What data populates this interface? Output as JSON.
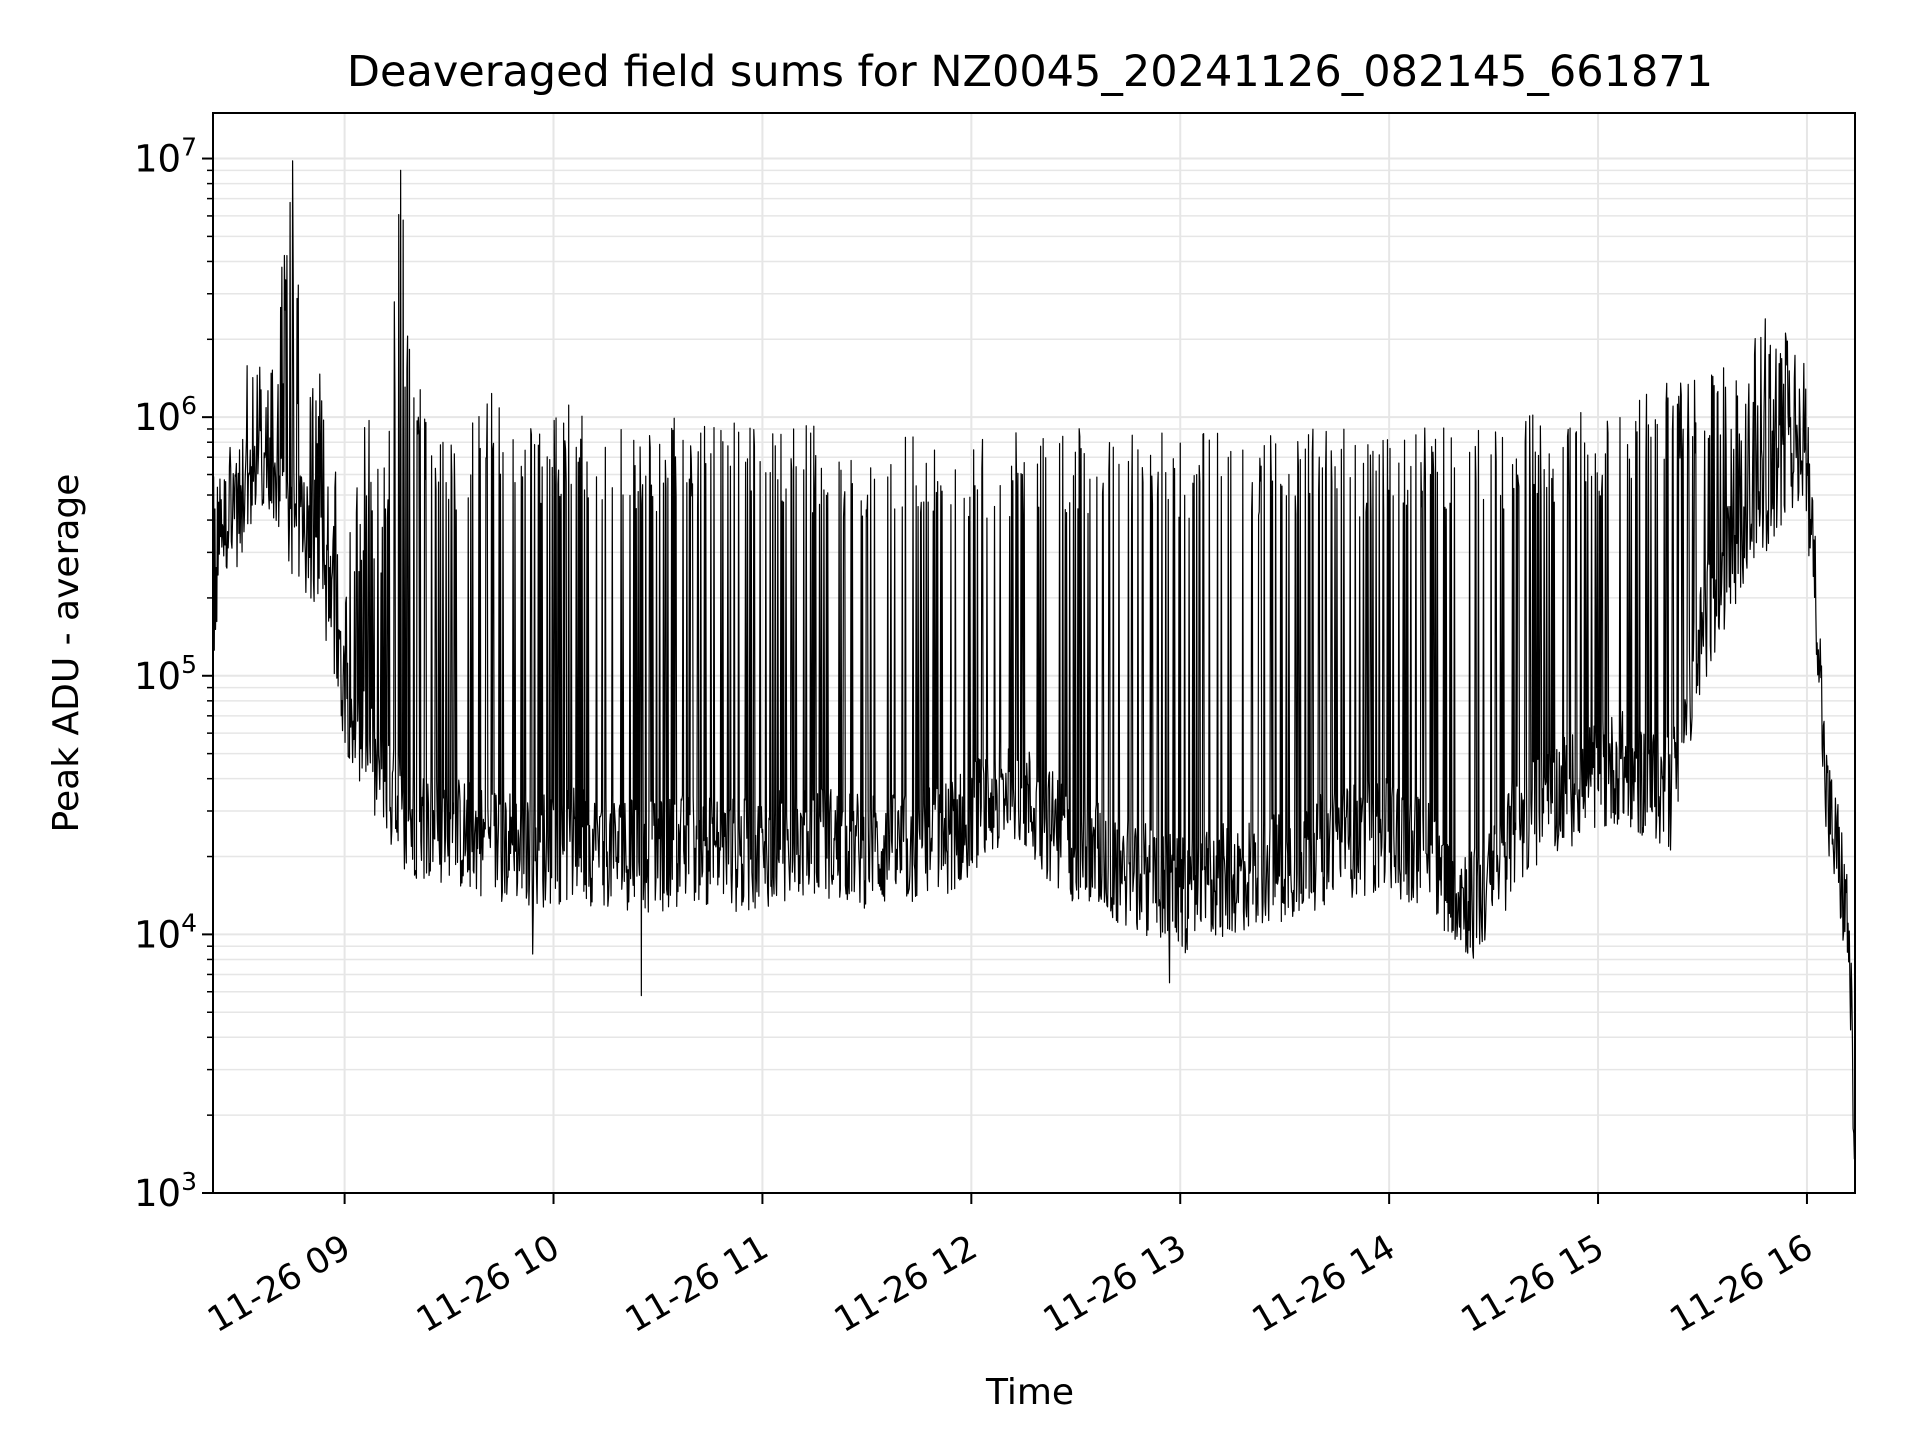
{
  "chart_data": {
    "type": "line",
    "title": "Deaveraged field sums for NZ0045_20241126_082145_661871",
    "xlabel": "Time",
    "ylabel": "Peak ADU - average",
    "yscale": "log",
    "ylim": [
      1000,
      15000000
    ],
    "xlim_hours": [
      8.37,
      16.23
    ],
    "grid": "on (major and minor, light gray)",
    "line_color": "#000000",
    "x_tick_labels": [
      "11-26 09",
      "11-26 10",
      "11-26 11",
      "11-26 12",
      "11-26 13",
      "11-26 14",
      "11-26 15",
      "11-26 16"
    ],
    "x_tick_hours": [
      9,
      10,
      11,
      12,
      13,
      14,
      15,
      16
    ],
    "y_ticks": [
      {
        "value": 1000,
        "base": "10",
        "exp": "3"
      },
      {
        "value": 10000,
        "base": "10",
        "exp": "4"
      },
      {
        "value": 100000,
        "base": "10",
        "exp": "5"
      },
      {
        "value": 1000000,
        "base": "10",
        "exp": "6"
      },
      {
        "value": 10000000,
        "base": "10",
        "exp": "7"
      }
    ],
    "series_note": "dense oscillating series; envelope values in data units",
    "upper_envelope": [
      [
        8.37,
        400000
      ],
      [
        8.5,
        1500000
      ],
      [
        8.6,
        1800000
      ],
      [
        8.7,
        3800000
      ],
      [
        8.75,
        9800000
      ],
      [
        8.8,
        1400000
      ],
      [
        8.9,
        1600000
      ],
      [
        9.0,
        300000
      ],
      [
        9.1,
        1200000
      ],
      [
        9.2,
        900000
      ],
      [
        9.27,
        9000000
      ],
      [
        9.3,
        2500000
      ],
      [
        9.4,
        900000
      ],
      [
        9.6,
        900000
      ],
      [
        9.7,
        1700000
      ],
      [
        9.8,
        900000
      ],
      [
        10.0,
        1000000
      ],
      [
        10.1,
        1200000
      ],
      [
        10.3,
        900000
      ],
      [
        10.6,
        1000000
      ],
      [
        11.0,
        950000
      ],
      [
        11.5,
        900000
      ],
      [
        12.0,
        900000
      ],
      [
        12.4,
        920000
      ],
      [
        12.8,
        900000
      ],
      [
        13.2,
        900000
      ],
      [
        13.6,
        900000
      ],
      [
        14.0,
        900000
      ],
      [
        14.4,
        950000
      ],
      [
        14.6,
        1000000
      ],
      [
        15.0,
        1100000
      ],
      [
        15.2,
        1300000
      ],
      [
        15.4,
        1500000
      ],
      [
        15.6,
        1600000
      ],
      [
        15.8,
        2400000
      ],
      [
        15.9,
        2200000
      ],
      [
        16.0,
        1600000
      ],
      [
        16.05,
        300000
      ],
      [
        16.1,
        180000
      ]
    ],
    "baseline": [
      [
        8.37,
        350000
      ],
      [
        8.5,
        450000
      ],
      [
        8.6,
        600000
      ],
      [
        8.7,
        450000
      ],
      [
        8.8,
        350000
      ],
      [
        8.9,
        250000
      ],
      [
        9.0,
        90000
      ],
      [
        9.1,
        50000
      ],
      [
        9.2,
        35000
      ],
      [
        9.3,
        28000
      ],
      [
        9.5,
        25000
      ],
      [
        9.7,
        23000
      ],
      [
        9.9,
        21000
      ],
      [
        10.1,
        22000
      ],
      [
        10.3,
        21000
      ],
      [
        10.5,
        20000
      ],
      [
        10.7,
        22000
      ],
      [
        10.9,
        20000
      ],
      [
        11.1,
        22000
      ],
      [
        11.3,
        23000
      ],
      [
        11.5,
        21000
      ],
      [
        11.7,
        21000
      ],
      [
        11.9,
        24000
      ],
      [
        12.1,
        33000
      ],
      [
        12.2,
        40000
      ],
      [
        12.3,
        30000
      ],
      [
        12.5,
        22000
      ],
      [
        12.7,
        18000
      ],
      [
        12.9,
        16000
      ],
      [
        13.0,
        14000
      ],
      [
        13.2,
        16000
      ],
      [
        13.4,
        18000
      ],
      [
        13.6,
        20000
      ],
      [
        13.8,
        23000
      ],
      [
        14.0,
        24000
      ],
      [
        14.2,
        20000
      ],
      [
        14.3,
        16000
      ],
      [
        14.4,
        13000
      ],
      [
        14.5,
        16000
      ],
      [
        14.6,
        25000
      ],
      [
        14.8,
        35000
      ],
      [
        15.0,
        40000
      ],
      [
        15.1,
        45000
      ],
      [
        15.2,
        40000
      ],
      [
        15.35,
        35000
      ],
      [
        15.5,
        150000
      ],
      [
        15.6,
        250000
      ],
      [
        15.7,
        350000
      ],
      [
        15.8,
        500000
      ],
      [
        15.9,
        650000
      ],
      [
        16.0,
        600000
      ],
      [
        16.05,
        180000
      ],
      [
        16.08,
        50000
      ],
      [
        16.1,
        30000
      ],
      [
        16.15,
        20000
      ],
      [
        16.2,
        10000
      ],
      [
        16.23,
        1500
      ]
    ],
    "notable_spikes": [
      [
        8.75,
        9800000
      ],
      [
        9.27,
        9000000
      ],
      [
        8.7,
        3800000
      ],
      [
        15.8,
        2400000
      ],
      [
        10.42,
        5800
      ],
      [
        12.95,
        6500
      ],
      [
        9.9,
        8400
      ],
      [
        16.23,
        1500
      ]
    ]
  }
}
